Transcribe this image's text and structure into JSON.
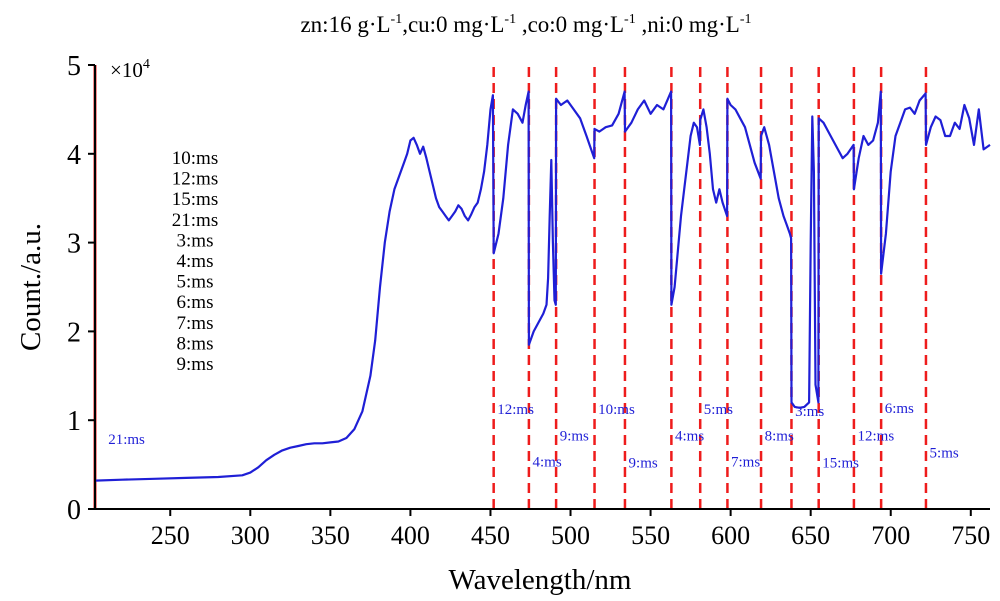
{
  "chart_data": {
    "type": "line",
    "title_parts": {
      "p1": "zn:16  g·L",
      "s1": "-1",
      "p2": ",cu:0 mg·L",
      "s2": "-1",
      "p3": " ,co:0 mg·L",
      "s3": "-1",
      "p4": " ,ni:0 mg·L",
      "s4": "-1"
    },
    "xlabel": "Wavelength/nm",
    "ylabel": "Count./a.u.",
    "y_multiplier": {
      "base": "×10",
      "exp": "4"
    },
    "xlim": [
      203,
      762
    ],
    "ylim": [
      0,
      5
    ],
    "x_ticks": [
      250,
      300,
      350,
      400,
      450,
      500,
      550,
      600,
      650,
      700,
      750
    ],
    "y_ticks": [
      0,
      1,
      2,
      3,
      4,
      5
    ],
    "legend_entries": [
      "10:ms",
      "12:ms",
      "15:ms",
      "21:ms",
      "3:ms",
      "4:ms",
      "5:ms",
      "6:ms",
      "7:ms",
      "8:ms",
      "9:ms"
    ],
    "colors": {
      "line": "#1f1fd6",
      "boundary": "#ee1c1c",
      "label": "#1f1fd6",
      "axis": "#000000"
    },
    "segment_boundaries": [
      203,
      452,
      474,
      491,
      515,
      534,
      563,
      581,
      598,
      619,
      638,
      655,
      677,
      694,
      722
    ],
    "segment_labels": [
      {
        "text": "21:ms",
        "x": 210,
        "y": 0.73
      },
      {
        "text": "12:ms",
        "x": 453,
        "y": 1.07
      },
      {
        "text": "4:ms",
        "x": 475,
        "y": 0.48
      },
      {
        "text": "9:ms",
        "x": 492,
        "y": 0.77
      },
      {
        "text": "10:ms",
        "x": 516,
        "y": 1.07
      },
      {
        "text": "9:ms",
        "x": 535,
        "y": 0.47
      },
      {
        "text": "4:ms",
        "x": 564,
        "y": 0.77
      },
      {
        "text": "5:ms",
        "x": 582,
        "y": 1.07
      },
      {
        "text": "7:ms",
        "x": 599,
        "y": 0.48
      },
      {
        "text": "8:ms",
        "x": 620,
        "y": 0.77
      },
      {
        "text": "3:ms",
        "x": 639,
        "y": 1.05
      },
      {
        "text": "15:ms",
        "x": 656,
        "y": 0.47
      },
      {
        "text": "12:ms",
        "x": 678,
        "y": 0.77
      },
      {
        "text": "6:ms",
        "x": 695,
        "y": 1.08
      },
      {
        "text": "5:ms",
        "x": 723,
        "y": 0.58
      }
    ],
    "series": [
      {
        "x": [
          203,
          220,
          240,
          260,
          280,
          295,
          300,
          305,
          310,
          315,
          320,
          325,
          330,
          335,
          340,
          345,
          350,
          355,
          360,
          365,
          370,
          375,
          378,
          381,
          384,
          387,
          390,
          393,
          396,
          398,
          400,
          402,
          404,
          406,
          408,
          410,
          412,
          414,
          416,
          418,
          420,
          422,
          424,
          426,
          428,
          430,
          432,
          434,
          436,
          438,
          440,
          442,
          444,
          446,
          448,
          450,
          451.5,
          452,
          455,
          458,
          461,
          464,
          467,
          470,
          472,
          473.8,
          474,
          477,
          480,
          483,
          485,
          486,
          487,
          488,
          489,
          490,
          490.8,
          491,
          494,
          498,
          502,
          506,
          510,
          514.8,
          515,
          518,
          522,
          526,
          530,
          533.8,
          534,
          538,
          542,
          546,
          550,
          554,
          558,
          562.8,
          563,
          565,
          567,
          569,
          571,
          573,
          575,
          577,
          579,
          580.8,
          581,
          583,
          585,
          587,
          589,
          591,
          593,
          595,
          597.8,
          598,
          600,
          603,
          606,
          609,
          612,
          615,
          618.8,
          619,
          621,
          624,
          627,
          630,
          633,
          635,
          637,
          637.8,
          638,
          640,
          643,
          646,
          649,
          650,
          651,
          652,
          653,
          654.8,
          655,
          658,
          661,
          664,
          667,
          670,
          673,
          676.8,
          677,
          680,
          683,
          686,
          689,
          692,
          693.8,
          694,
          697,
          700,
          703,
          706,
          709,
          712,
          715,
          718,
          721.8,
          722,
          725,
          728,
          731,
          734,
          737,
          740,
          743,
          746,
          749,
          752,
          755,
          758,
          762
        ],
        "y": [
          0.32,
          0.33,
          0.34,
          0.35,
          0.36,
          0.38,
          0.41,
          0.47,
          0.55,
          0.61,
          0.66,
          0.69,
          0.71,
          0.73,
          0.74,
          0.74,
          0.75,
          0.76,
          0.8,
          0.9,
          1.1,
          1.5,
          1.9,
          2.5,
          3.0,
          3.35,
          3.6,
          3.75,
          3.9,
          4.0,
          4.15,
          4.18,
          4.1,
          4.0,
          4.08,
          3.95,
          3.8,
          3.65,
          3.5,
          3.4,
          3.35,
          3.3,
          3.25,
          3.3,
          3.35,
          3.42,
          3.38,
          3.3,
          3.25,
          3.32,
          3.4,
          3.45,
          3.6,
          3.8,
          4.1,
          4.5,
          4.66,
          2.88,
          3.1,
          3.5,
          4.1,
          4.5,
          4.45,
          4.35,
          4.55,
          4.7,
          1.85,
          2.0,
          2.1,
          2.2,
          2.3,
          2.6,
          3.3,
          3.93,
          3.0,
          2.35,
          2.3,
          4.62,
          4.55,
          4.6,
          4.5,
          4.4,
          4.2,
          3.95,
          4.28,
          4.25,
          4.3,
          4.32,
          4.45,
          4.7,
          4.25,
          4.35,
          4.5,
          4.6,
          4.45,
          4.55,
          4.5,
          4.7,
          2.3,
          2.5,
          2.9,
          3.3,
          3.6,
          3.9,
          4.2,
          4.35,
          4.3,
          4.1,
          4.38,
          4.5,
          4.3,
          4.0,
          3.6,
          3.45,
          3.6,
          3.45,
          3.3,
          4.62,
          4.55,
          4.5,
          4.4,
          4.3,
          4.1,
          3.9,
          3.72,
          4.2,
          4.3,
          4.1,
          3.8,
          3.5,
          3.3,
          3.2,
          3.1,
          3.05,
          1.2,
          1.15,
          1.14,
          1.15,
          1.2,
          3.0,
          4.42,
          3.8,
          1.4,
          1.2,
          4.4,
          4.35,
          4.25,
          4.15,
          4.05,
          3.95,
          4.0,
          4.1,
          3.6,
          3.95,
          4.2,
          4.1,
          4.15,
          4.35,
          4.7,
          2.65,
          3.1,
          3.8,
          4.2,
          4.35,
          4.5,
          4.52,
          4.45,
          4.6,
          4.68,
          4.1,
          4.3,
          4.42,
          4.38,
          4.2,
          4.2,
          4.35,
          4.28,
          4.55,
          4.4,
          4.1,
          4.5,
          4.05,
          4.1
        ]
      }
    ]
  }
}
